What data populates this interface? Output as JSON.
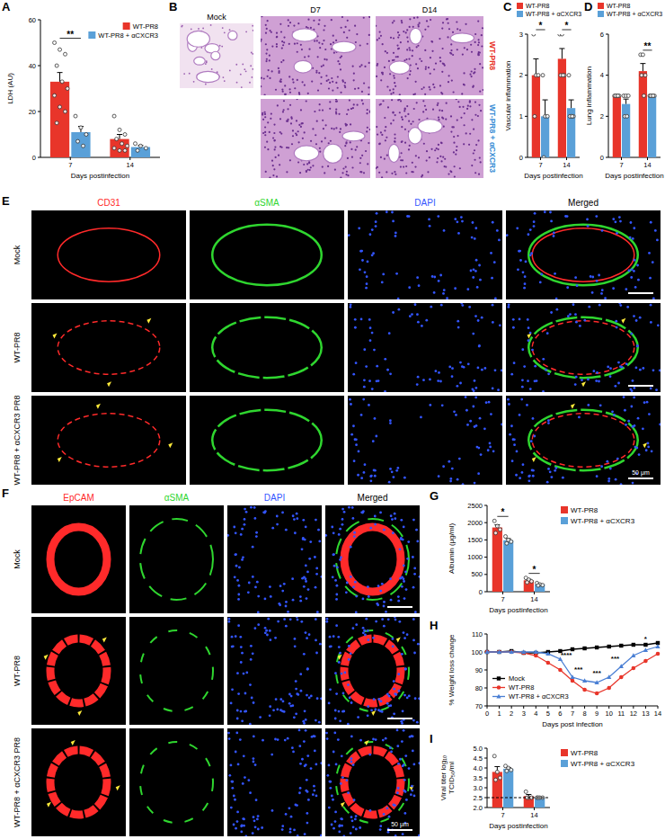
{
  "chart_data": [
    {
      "panel": "A",
      "type": "bar",
      "y_label": "LDH (AU)",
      "x_label": "Days postinfection",
      "categories": [
        "7",
        "14"
      ],
      "ylim": [
        0,
        60
      ],
      "yticks": [
        0,
        20,
        40,
        60
      ],
      "legend": "upper right",
      "series": [
        {
          "name": "WT-PR8",
          "color": "#e8352a",
          "values": [
            33,
            8
          ],
          "errors": [
            4,
            2
          ],
          "points": [
            [
              50,
              47,
              45,
              40,
              33,
              30,
              27,
              22,
              20,
              15
            ],
            [
              18,
              12,
              10,
              8,
              6,
              5,
              4,
              3,
              3
            ]
          ]
        },
        {
          "name": "WT-PR8 + αCXCR3",
          "color": "#5aa0d8",
          "values": [
            11,
            4.5
          ],
          "errors": [
            2.5,
            0.7
          ],
          "points": [
            [
              18,
              13,
              10,
              7,
              5
            ],
            [
              6,
              5,
              4,
              3
            ]
          ]
        }
      ],
      "significance": [
        "**",
        null
      ]
    },
    {
      "panel": "C",
      "type": "bar",
      "y_label": "Vascular inflammation",
      "x_label": "Days postinfection",
      "categories": [
        "7",
        "14"
      ],
      "ylim": [
        0,
        3
      ],
      "yticks": [
        0,
        1,
        2,
        3
      ],
      "legend": "top",
      "series": [
        {
          "name": "WT-PR8",
          "color": "#e8352a",
          "values": [
            2,
            2.4
          ],
          "errors": [
            0.4,
            0.25
          ],
          "points": [
            [
              3,
              2,
              2,
              1
            ],
            [
              3,
              3,
              2,
              2,
              2
            ]
          ]
        },
        {
          "name": "WT-PR8 + αCXCR3",
          "color": "#5aa0d8",
          "values": [
            1,
            1.2
          ],
          "errors": [
            0.4,
            0.2
          ],
          "points": [
            [
              2,
              1,
              1,
              0
            ],
            [
              2,
              1,
              1,
              1,
              1
            ]
          ]
        }
      ],
      "significance": [
        "*",
        "*"
      ]
    },
    {
      "panel": "D",
      "type": "bar",
      "y_label": "Lung inflammation",
      "x_label": "Days postinfection",
      "categories": [
        "7",
        "14"
      ],
      "ylim": [
        0,
        6
      ],
      "yticks": [
        0,
        2,
        4,
        6
      ],
      "legend": "top",
      "series": [
        {
          "name": "WT-PR8",
          "color": "#e8352a",
          "values": [
            3,
            4.2
          ],
          "errors": [
            0,
            0.37
          ],
          "points": [
            [
              3,
              3,
              3,
              3,
              3
            ],
            [
              5,
              5,
              4,
              4,
              3
            ]
          ]
        },
        {
          "name": "WT-PR8 + αCXCR3",
          "color": "#5aa0d8",
          "values": [
            2.6,
            3
          ],
          "errors": [
            0.24,
            0
          ],
          "points": [
            [
              3,
              3,
              3,
              2,
              2
            ],
            [
              3,
              3,
              3,
              3,
              3
            ]
          ]
        }
      ],
      "significance": [
        null,
        "**"
      ]
    },
    {
      "panel": "G",
      "type": "bar",
      "y_label": "Albumin (μg/ml)",
      "x_label": "Days postinfection",
      "categories": [
        "7",
        "14"
      ],
      "ylim": [
        0,
        2500
      ],
      "yticks": [
        0,
        500,
        1000,
        1500,
        2000,
        2500
      ],
      "legend": "right",
      "series": [
        {
          "name": "WT-PR8",
          "color": "#e8352a",
          "values": [
            1860,
            330
          ],
          "errors": [
            75,
            30
          ],
          "points": [
            [
              2050,
              1900,
              1800,
              1700
            ],
            [
              400,
              350,
              300,
              270
            ]
          ]
        },
        {
          "name": "WT-PR8 + αCXCR3",
          "color": "#5aa0d8",
          "values": [
            1490,
            210
          ],
          "errors": [
            45,
            15
          ],
          "points": [
            [
              1600,
              1500,
              1450,
              1400
            ],
            [
              250,
              210,
              190,
              180
            ]
          ]
        }
      ],
      "significance": [
        "*",
        "*"
      ]
    },
    {
      "panel": "H",
      "type": "line",
      "y_label": "% Weight loss change",
      "x_label": "Days post infection",
      "x": [
        0,
        1,
        2,
        3,
        4,
        5,
        6,
        7,
        8,
        9,
        10,
        11,
        12,
        13,
        14
      ],
      "xlim": [
        0,
        14
      ],
      "xticks": [
        0,
        1,
        2,
        3,
        4,
        5,
        6,
        7,
        8,
        9,
        10,
        11,
        12,
        13,
        14
      ],
      "ylim": [
        70,
        110
      ],
      "yticks": [
        70,
        80,
        90,
        100,
        110
      ],
      "legend": "lower left",
      "series": [
        {
          "name": "Mock",
          "color": "#000000",
          "marker": "square",
          "values": [
            100,
            100,
            100.5,
            99.5,
            99.5,
            100,
            100.5,
            101.5,
            102,
            102.5,
            103,
            103.5,
            104,
            104,
            105
          ]
        },
        {
          "name": "WT-PR8",
          "color": "#e8352a",
          "marker": "circle",
          "values": [
            100,
            100,
            100,
            99.5,
            98,
            94,
            90,
            84,
            79,
            77,
            80,
            86,
            91,
            95,
            99
          ]
        },
        {
          "name": "WT-PR8 + αCXCR3",
          "color": "#4a7fd4",
          "marker": "triangle",
          "values": [
            100,
            100,
            100,
            100,
            100,
            99,
            96,
            86,
            84,
            83,
            86,
            92,
            98,
            101,
            103
          ]
        }
      ],
      "annotations": [
        {
          "x": 6.5,
          "y": 97,
          "text": "****"
        },
        {
          "x": 7.5,
          "y": 89,
          "text": "***"
        },
        {
          "x": 9,
          "y": 87,
          "text": "***"
        },
        {
          "x": 10.5,
          "y": 95,
          "text": "***"
        },
        {
          "x": 13,
          "y": 106,
          "text": "*"
        }
      ]
    },
    {
      "panel": "I",
      "type": "bar",
      "y_label": [
        "Viral titer log₁₀",
        "TCID₅₀/ml"
      ],
      "x_label": "Days postinfection",
      "categories": [
        "7",
        "14"
      ],
      "ylim": [
        2,
        5
      ],
      "yticks": [
        {
          "value": 2,
          "label": "2.0"
        },
        {
          "value": 2.5,
          "label": "2.5"
        },
        {
          "value": 3,
          "label": "3.0"
        },
        {
          "value": 3.5,
          "label": "3.5"
        },
        {
          "value": 4,
          "label": "4.0"
        },
        {
          "value": 4.5,
          "label": "4.5"
        },
        {
          "value": 5,
          "label": "5.0"
        }
      ],
      "legend": "right",
      "series": [
        {
          "name": "WT-PR8",
          "color": "#e8352a",
          "values": [
            3.8,
            2.58
          ],
          "errors": [
            0.27,
            0.08
          ],
          "points": [
            [
              4.6,
              3.8,
              3.5,
              3.4
            ],
            [
              2.8,
              2.5,
              2.5,
              2.5
            ]
          ]
        },
        {
          "name": "WT-PR8 + αCXCR3",
          "color": "#5aa0d8",
          "values": [
            3.96,
            2.5
          ],
          "errors": [
            0.06,
            0
          ],
          "points": [
            [
              4.1,
              4,
              3.9,
              3.85
            ],
            [
              2.5,
              2.5,
              2.5,
              2.5
            ]
          ]
        }
      ],
      "reference_line": 2.5
    }
  ],
  "images": [
    {
      "panel": "B",
      "type": "histology",
      "columns": [
        "Mock",
        "D7",
        "D14"
      ],
      "rows": [
        {
          "name": "WT-PR8",
          "color": "#e8352a"
        },
        {
          "name": "WT-PR8 + αCXCR3",
          "color": "#3d8fd6"
        }
      ]
    },
    {
      "panel": "E",
      "type": "immunofluorescence",
      "channels": [
        {
          "name": "CD31",
          "color": "#ff2a2a"
        },
        {
          "name": "αSMA",
          "color": "#2fd62f"
        },
        {
          "name": "DAPI",
          "color": "#3355ff"
        },
        {
          "name": "Merged",
          "color": "#000000"
        }
      ],
      "rows": [
        "Mock",
        "WT-PR8",
        "WT-PR8 + αCXCR3 PR8"
      ],
      "scale_bar": "50 μm"
    },
    {
      "panel": "F",
      "type": "immunofluorescence",
      "channels": [
        {
          "name": "EpCAM",
          "color": "#ff2a2a"
        },
        {
          "name": "αSMA",
          "color": "#2fd62f"
        },
        {
          "name": "DAPI",
          "color": "#3355ff"
        },
        {
          "name": "Merged",
          "color": "#000000"
        }
      ],
      "rows": [
        "Mock",
        "WT-PR8",
        "WT-PR8 + αCXCR3 PR8"
      ],
      "scale_bar": "50 μm"
    }
  ]
}
